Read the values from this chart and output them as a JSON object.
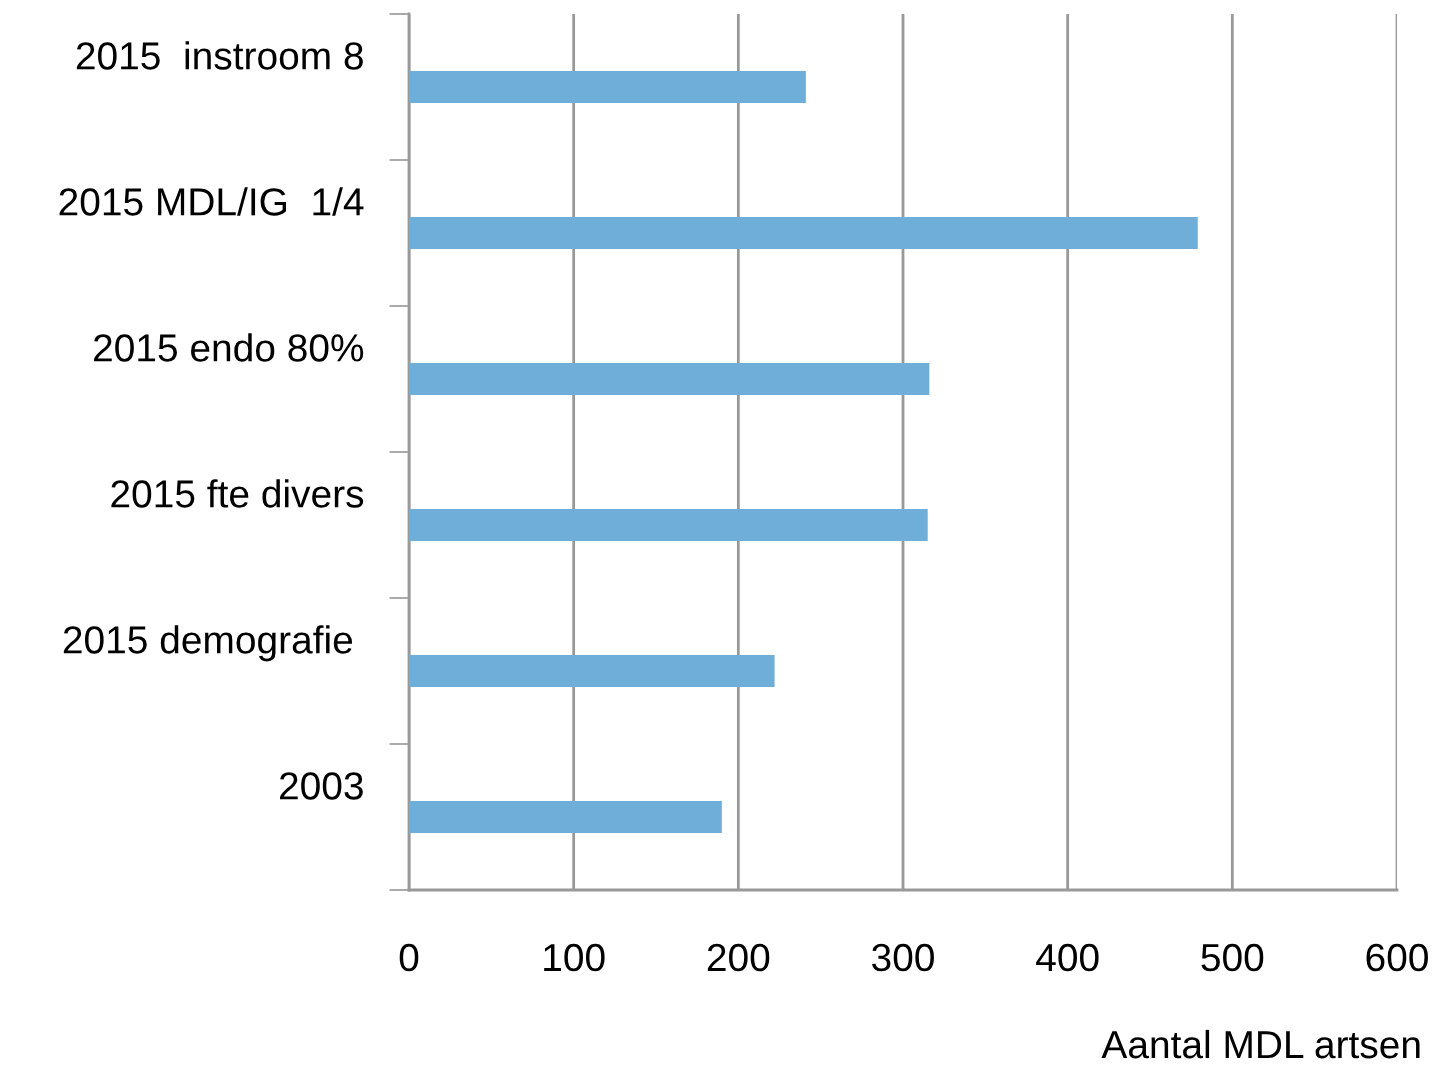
{
  "chart_data": {
    "type": "bar",
    "orientation": "horizontal",
    "categories": [
      "2015  instroom 8",
      "2015 MDL/IG  1/4",
      "2015 endo 80%",
      "2015 fte divers",
      "2015 demografie ",
      "2003"
    ],
    "values": [
      241,
      479,
      316,
      315,
      222,
      190
    ],
    "color": "#6faed9",
    "xlim": [
      0,
      600
    ],
    "xticks": [
      0,
      100,
      200,
      300,
      400,
      500,
      600
    ],
    "xlabel": "Aantal MDL artsen",
    "grid": "x"
  }
}
